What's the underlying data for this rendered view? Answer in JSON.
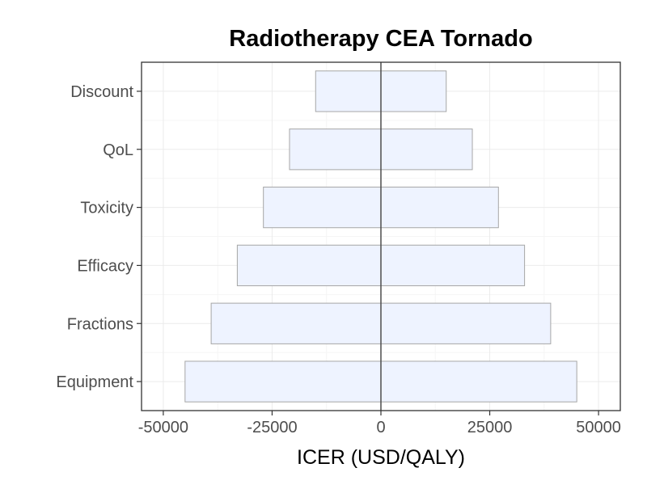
{
  "chart_data": {
    "type": "bar",
    "orientation": "horizontal",
    "subtype": "tornado",
    "title": "Radiotherapy CEA Tornado",
    "xlabel": "ICER (USD/QALY)",
    "ylabel": "",
    "xlim": [
      -55000,
      55000
    ],
    "x_ticks": [
      -50000,
      -25000,
      0,
      25000,
      50000
    ],
    "x_tick_labels": [
      "-50000",
      "-25000",
      "0",
      "25000",
      "50000"
    ],
    "categories": [
      "Discount",
      "QoL",
      "Toxicity",
      "Efficacy",
      "Fractions",
      "Equipment"
    ],
    "low": [
      -15000,
      -21000,
      -27000,
      -33000,
      -39000,
      -45000
    ],
    "high": [
      15000,
      21000,
      27000,
      33000,
      39000,
      45000
    ],
    "reference_line": 0,
    "grid": true,
    "legend": "none",
    "colors": {
      "bar_fill": "#eef3ff",
      "bar_stroke": "#a6a6a6",
      "grid_major": "#ebebeb",
      "grid_minor": "#f5f5f5",
      "panel_border": "#333333",
      "reference_line": "#4d4d4d"
    }
  }
}
